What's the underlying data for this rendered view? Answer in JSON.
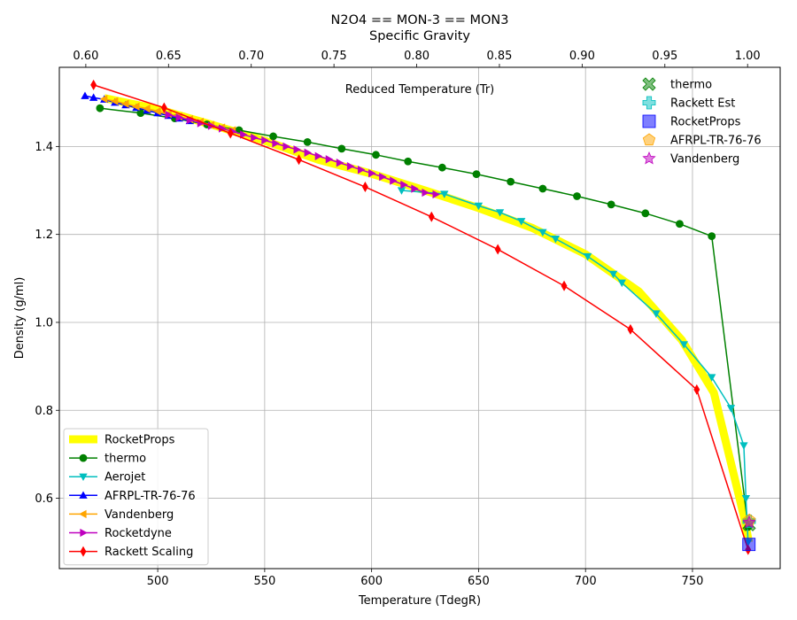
{
  "chart_data": {
    "type": "line",
    "title": "N2O4 == MON-3 == MON3",
    "xlabel": "Temperature (TdegR)",
    "ylabel": "Density (g/ml)",
    "x2label": "Specific Gravity",
    "inner_label": "Reduced Temperature (Tr)",
    "xlim": [
      454,
      791
    ],
    "ylim": [
      0.44,
      1.58
    ],
    "x2lim": [
      0.584,
      1.0197
    ],
    "xticks": [
      500,
      550,
      600,
      650,
      700,
      750
    ],
    "yticks": [
      0.6,
      0.8,
      1.0,
      1.2,
      1.4
    ],
    "x2ticks": [
      0.6,
      0.65,
      0.7,
      0.75,
      0.8,
      0.85,
      0.9,
      0.95,
      1.0
    ],
    "x2ticklabels": [
      "0.60",
      "0.65",
      "0.70",
      "0.75",
      "0.80",
      "0.85",
      "0.90",
      "0.95",
      "1.00"
    ],
    "ytickformat": 1,
    "grid": true,
    "series": [
      {
        "name": "RocketProps",
        "color": "#ffff00",
        "marker": "none",
        "width": 9,
        "x": [
          475,
          500,
          525,
          550,
          575,
          600,
          625,
          650,
          675,
          700,
          725,
          745,
          760,
          768,
          774,
          776.4
        ],
        "y": [
          1.51,
          1.485,
          1.45,
          1.413,
          1.37,
          1.338,
          1.3,
          1.26,
          1.215,
          1.155,
          1.07,
          0.96,
          0.84,
          0.68,
          0.56,
          0.5
        ]
      },
      {
        "name": "thermo",
        "color": "#008000",
        "marker": "o",
        "width": 1.5,
        "x": [
          473,
          492,
          508,
          523,
          538,
          554,
          570,
          586,
          602,
          617,
          633,
          649,
          665,
          680,
          696,
          712,
          728,
          744,
          759,
          776
        ],
        "y": [
          1.487,
          1.476,
          1.464,
          1.45,
          1.437,
          1.423,
          1.41,
          1.395,
          1.381,
          1.366,
          1.352,
          1.337,
          1.32,
          1.304,
          1.287,
          1.268,
          1.248,
          1.224,
          1.196,
          0.535
        ]
      },
      {
        "name": "Aerojet",
        "color": "#00bfbf",
        "marker": "v",
        "width": 1.5,
        "x": [
          614,
          634,
          650,
          660,
          670,
          680,
          686,
          701,
          713,
          717,
          733,
          746,
          759,
          768,
          774,
          775,
          776
        ],
        "y": [
          1.3,
          1.292,
          1.265,
          1.25,
          1.23,
          1.205,
          1.19,
          1.15,
          1.11,
          1.09,
          1.02,
          0.95,
          0.875,
          0.805,
          0.72,
          0.6,
          0.5
        ]
      },
      {
        "name": "AFRPL-TR-76-76",
        "color": "#0000ff",
        "marker": "^",
        "width": 1.5,
        "x": [
          466,
          470,
          475,
          480,
          485,
          490,
          495,
          500,
          505,
          510,
          515
        ],
        "y": [
          1.515,
          1.511,
          1.507,
          1.5,
          1.494,
          1.488,
          1.482,
          1.476,
          1.47,
          1.464,
          1.458
        ]
      },
      {
        "name": "Vandenberg",
        "color": "#ffa500",
        "marker": "<",
        "width": 1.5,
        "x": [
          475,
          480,
          485,
          490,
          495,
          500,
          505,
          510,
          515,
          520,
          525,
          530,
          535
        ],
        "y": [
          1.508,
          1.503,
          1.497,
          1.491,
          1.486,
          1.48,
          1.474,
          1.468,
          1.462,
          1.456,
          1.449,
          1.443,
          1.437
        ]
      },
      {
        "name": "Rocketdyne",
        "color": "#bf00bf",
        "marker": ">",
        "width": 1.5,
        "x": [
          505,
          510,
          515,
          520,
          525,
          530,
          535,
          540,
          545,
          550,
          555,
          560,
          565,
          570,
          575,
          580,
          585,
          590,
          595,
          600,
          605,
          610,
          615,
          620,
          625,
          630
        ],
        "y": [
          1.472,
          1.466,
          1.46,
          1.453,
          1.447,
          1.441,
          1.434,
          1.427,
          1.42,
          1.414,
          1.407,
          1.4,
          1.393,
          1.386,
          1.378,
          1.371,
          1.363,
          1.355,
          1.347,
          1.339,
          1.331,
          1.322,
          1.313,
          1.304,
          1.295,
          1.291
        ]
      },
      {
        "name": "Rackett Scaling",
        "color": "#ff0000",
        "marker": "d",
        "width": 1.5,
        "x": [
          470,
          503,
          534,
          566,
          597,
          628,
          659,
          690,
          721,
          752,
          776
        ],
        "y": [
          1.54,
          1.488,
          1.43,
          1.37,
          1.308,
          1.24,
          1.166,
          1.083,
          0.984,
          0.847,
          0.483
        ]
      }
    ],
    "critical_points": [
      {
        "name": "thermo",
        "x": 776.5,
        "y": 0.54,
        "marker": "X",
        "color": "#008000"
      },
      {
        "name": "Rackett Est",
        "x": 776.5,
        "y": 0.548,
        "marker": "P",
        "color": "#00bfbf"
      },
      {
        "name": "RocketProps",
        "x": 776.4,
        "y": 0.495,
        "marker": "s",
        "color": "#0000ff"
      },
      {
        "name": "AFRPL-TR-76-76",
        "x": 776.6,
        "y": 0.55,
        "marker": "p",
        "color": "#ffa500"
      },
      {
        "name": "Vandenberg",
        "x": 776.5,
        "y": 0.545,
        "marker": "*",
        "color": "#bf00bf"
      }
    ],
    "legend_lines": {
      "placement": "lower-left",
      "entries": [
        "RocketProps",
        "thermo",
        "Aerojet",
        "AFRPL-TR-76-76",
        "Vandenberg",
        "Rocketdyne",
        "Rackett Scaling"
      ]
    },
    "legend_points": {
      "placement": "upper-right",
      "entries": [
        "thermo",
        "Rackett Est",
        "RocketProps",
        "AFRPL-TR-76-76",
        "Vandenberg"
      ]
    }
  }
}
